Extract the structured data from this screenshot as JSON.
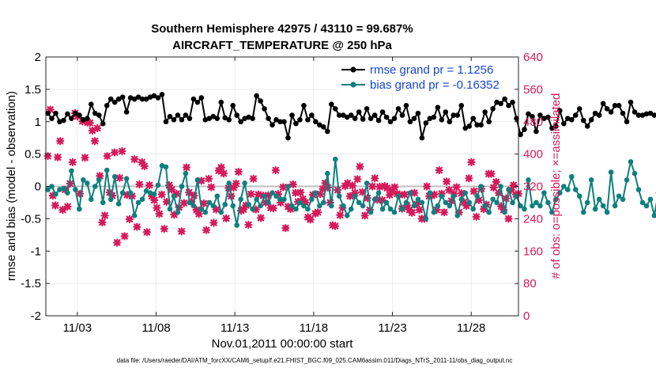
{
  "chart_data": {
    "type": "line",
    "title": [
      "Southern Hemisphere 42975 / 43110 = 99.687%",
      "AIRCRAFT_TEMPERATURE @ 250 hPa"
    ],
    "xlabel": "Nov.01,2011 00:00:00 start",
    "ylabel": "rmse and bias (model - observation)",
    "y2label": "# of obs: o=possible; ×=assimilated",
    "footer": "data file: /Users/raeder/DAI/ATM_forcXX/CAM6_setup/f.e21.FHIST_BGC.f09_025.CAM6assim.011/Diags_NTrS_2011-11/obs_diag_output.nc",
    "xlim": [
      1.0,
      31.0
    ],
    "ylim": [
      -2,
      2
    ],
    "y2lim": [
      0,
      640
    ],
    "x_tick_values": [
      3,
      8,
      13,
      18,
      23,
      28
    ],
    "x_tick_labels": [
      "11/03",
      "11/08",
      "11/13",
      "11/18",
      "11/23",
      "11/28"
    ],
    "y_tick_labels": [
      "2",
      "1.5",
      "1",
      "0.5",
      "0",
      "-0.5",
      "-1",
      "-1.5",
      "-2"
    ],
    "y2_tick_labels": [
      "640",
      "560",
      "480",
      "400",
      "320",
      "240",
      "160",
      "80",
      "0"
    ],
    "x_step_days": 0.25,
    "legend": {
      "position": "top-right",
      "entries": [
        "rmse grand pr = 1.1256",
        "bias grand pr = -0.16352"
      ]
    },
    "colors": {
      "rmse": "#000000",
      "bias": "#0f7f7f",
      "obs": "#d6195a",
      "zero_line": "#bfbfbf",
      "legend_text": "#1546d8"
    },
    "series": [
      {
        "name": "rmse grand pr = 1.1256",
        "axis": "left",
        "values": [
          1.13,
          1.05,
          1.13,
          1.0,
          1.02,
          1.12,
          1.05,
          1.13,
          1.1,
          1.03,
          1.05,
          1.27,
          1.13,
          1.1,
          0.97,
          1.25,
          1.35,
          1.3,
          1.35,
          1.38,
          1.15,
          1.37,
          1.35,
          1.38,
          1.35,
          1.35,
          1.38,
          1.4,
          1.37,
          1.42,
          1.0,
          1.08,
          1.03,
          1.1,
          1.03,
          1.1,
          1.05,
          1.35,
          1.3,
          1.37,
          1.03,
          1.05,
          1.08,
          1.05,
          1.3,
          1.06,
          1.03,
          1.25,
          1.1,
          1.0,
          1.05,
          1.07,
          1.05,
          1.4,
          1.32,
          1.2,
          1.05,
          0.95,
          1.03,
          1.0,
          1.0,
          0.75,
          1.1,
          0.97,
          1.03,
          1.25,
          1.03,
          1.1,
          1.0,
          0.95,
          0.92,
          0.85,
          1.27,
          1.2,
          1.1,
          1.1,
          1.07,
          1.1,
          1.05,
          1.15,
          1.04,
          1.2,
          1.05,
          1.1,
          1.02,
          1.15,
          1.07,
          1.0,
          1.05,
          1.2,
          1.1,
          1.25,
          1.0,
          1.05,
          1.13,
          0.75,
          0.98,
          1.05,
          1.07,
          1.22,
          1.03,
          1.15,
          1.0,
          1.1,
          1.1,
          1.25,
          0.9,
          0.93,
          1.05,
          0.95,
          0.95,
          1.15,
          1.0,
          1.2,
          1.3,
          1.28,
          1.35,
          1.25,
          1.3,
          1.05,
          0.8,
          0.88,
          1.12,
          1.08,
          0.85,
          1.1,
          1.05,
          1.07,
          0.9,
          0.93,
          1.17,
          0.97,
          1.05,
          1.03,
          1.1,
          1.2,
          1.02,
          0.93,
          1.03,
          1.13,
          1.1,
          1.28,
          1.2,
          1.15,
          1.25,
          1.25,
          1.13,
          1.0,
          1.3,
          1.15,
          1.1,
          1.1,
          1.12,
          1.13,
          1.1,
          1.1,
          1.17,
          1.35,
          1.22,
          1.13,
          1.1,
          1.28,
          1.25
        ]
      },
      {
        "name": "bias grand pr = -0.16352",
        "axis": "left",
        "values": [
          -0.05,
          0.0,
          -0.12,
          -0.05,
          -0.03,
          -0.1,
          0.24,
          -0.05,
          -0.35,
          0.1,
          0.05,
          -0.2,
          0.0,
          0.1,
          -0.25,
          0.25,
          -0.2,
          0.15,
          -0.27,
          -0.1,
          0.12,
          -0.1,
          -0.45,
          -0.25,
          -0.2,
          -0.07,
          -0.1,
          -0.12,
          0.02,
          0.32,
          0.3,
          -0.35,
          -0.15,
          -0.4,
          0.0,
          0.2,
          -0.25,
          -0.3,
          0.1,
          -0.35,
          -0.4,
          -0.25,
          -0.3,
          -0.15,
          -0.4,
          -0.28,
          0.05,
          -0.3,
          -0.6,
          -0.2,
          0.05,
          -0.28,
          -0.35,
          -0.2,
          -0.3,
          -0.15,
          -0.25,
          -0.1,
          -0.15,
          -0.2,
          -0.2,
          0.0,
          -0.3,
          -0.35,
          -0.25,
          -0.3,
          -0.35,
          -0.2,
          -0.1,
          -0.3,
          -0.25,
          0.2,
          -0.3,
          0.42,
          -0.15,
          -0.3,
          -0.45,
          -0.35,
          -0.15,
          -0.25,
          -0.3,
          0.05,
          -0.4,
          -0.2,
          -0.1,
          -0.35,
          -0.25,
          -0.35,
          -0.4,
          -0.15,
          -0.35,
          -0.25,
          -0.1,
          -0.3,
          -0.2,
          -0.25,
          -0.5,
          -0.1,
          -0.4,
          -0.3,
          -0.15,
          -0.25,
          -0.3,
          -0.15,
          -0.45,
          -0.2,
          -0.1,
          -0.25,
          -0.35,
          -0.15,
          0.0,
          -0.3,
          -0.4,
          -0.2,
          -0.25,
          0.0,
          -0.4,
          -0.05,
          -0.25,
          -0.15,
          -0.3,
          -0.35,
          0.1,
          -0.3,
          -0.25,
          -0.3,
          -0.1,
          -0.25,
          -0.4,
          -0.2,
          -0.1,
          0.0,
          -0.05,
          0.15,
          -0.05,
          -0.15,
          -0.4,
          -0.25,
          0.1,
          -0.35,
          -0.2,
          -0.3,
          -0.4,
          0.22,
          -0.3,
          -0.15,
          -0.2,
          0.1,
          0.38,
          0.2,
          -0.05,
          -0.25,
          -0.3,
          -0.2,
          -0.45,
          -0.1,
          -0.3,
          -0.15,
          -0.2,
          -0.45,
          -0.05,
          -0.5,
          -0.1,
          -0.45,
          -0.5
        ]
      },
      {
        "name": "",
        "axis": "right",
        "marker": "x",
        "values": [
          395,
          510,
          297,
          273,
          392,
          432,
          262,
          312,
          270,
          327,
          380,
          501,
          493,
          302,
          481,
          391,
          478,
          477,
          458,
          432,
          464,
          346,
          231,
          248,
          395,
          305,
          297,
          404,
          181,
          341,
          407,
          197,
          299,
          239,
          296,
          387,
          220,
          325,
          380,
          370,
          207,
          323,
          296,
          286,
          267,
          252,
          300,
          215,
          282,
          323,
          312,
          250,
          302,
          268,
          209,
          279,
          367,
          305,
          282,
          297,
          262,
          252,
          334,
          278,
          212,
          339,
          318,
          230,
          263,
          359,
          367,
          352,
          241,
          316,
          296,
          317,
          327,
          356,
          260,
          263,
          273,
          225,
          301,
          339,
          263,
          300,
          242,
          297,
          280,
          298,
          267,
          266,
          360,
          301,
          280,
          318,
          217,
          270,
          264,
          325,
          304,
          282,
          305,
          289,
          280,
          244,
          238,
          299,
          253,
          256,
          301,
          314,
          328,
          317,
          280,
          224,
          222,
          311,
          249,
          267,
          321,
          328,
          296,
          322,
          304,
          338,
          369,
          306,
          248,
          291,
          262,
          320,
          340,
          287,
          319,
          286,
          321,
          316,
          299,
          308,
          318,
          302,
          299,
          265,
          300,
          273,
          262,
          255,
          304,
          276,
          262,
          240,
          240,
          320,
          296,
          297,
          300,
          262,
          360,
          302,
          256,
          332,
          311,
          284,
          302,
          318,
          256,
          303,
          281,
          272,
          340,
          380,
          308,
          245,
          286,
          314,
          264,
          275,
          351,
          351,
          317,
          331,
          304,
          271,
          262,
          290,
          240,
          311,
          323,
          300,
          302
        ]
      }
    ]
  }
}
